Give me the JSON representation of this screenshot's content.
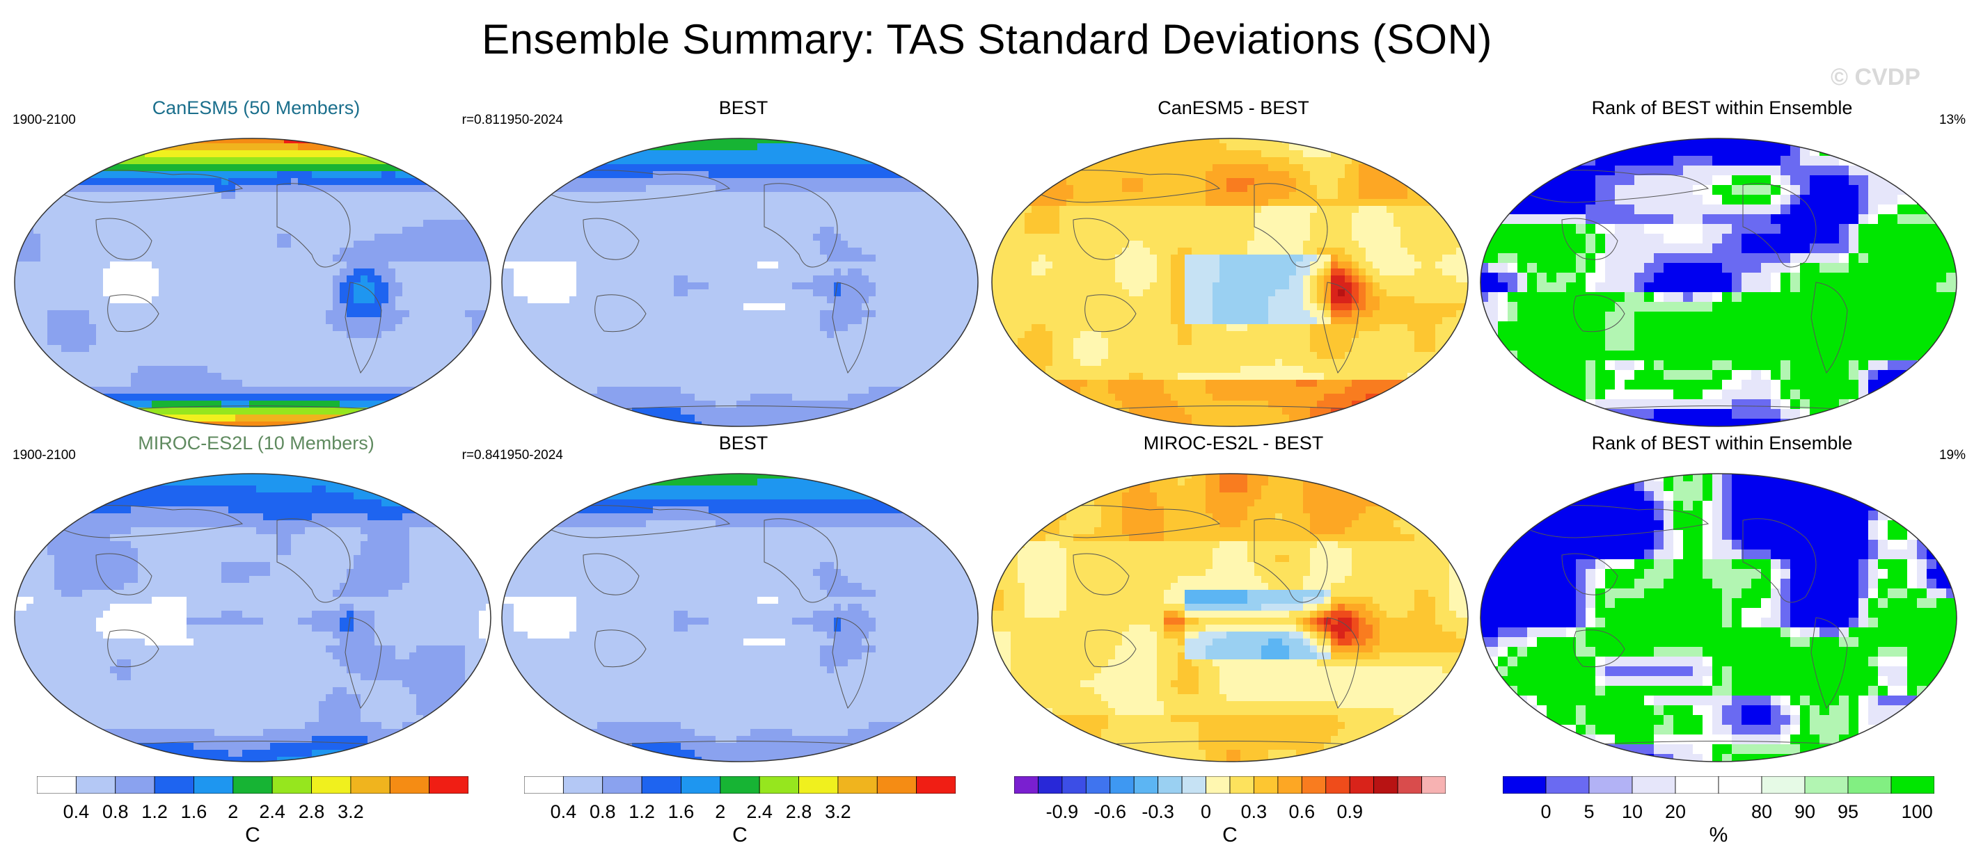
{
  "title": "Ensemble Summary: TAS Standard Deviations (SON)",
  "watermark": "© CVDP",
  "panels": [
    {
      "title": "CanESM5 (50 Members)",
      "title_color": "#1b6f8c",
      "left": "1900-2100",
      "right": "r=0.81",
      "kind": "std_model_a"
    },
    {
      "title": "BEST",
      "title_color": "#000000",
      "left": "1950-2024",
      "right": "",
      "kind": "std_obs"
    },
    {
      "title": "CanESM5 - BEST",
      "title_color": "#000000",
      "left": "",
      "right": "",
      "kind": "diff_a"
    },
    {
      "title": "Rank of BEST within Ensemble",
      "title_color": "#000000",
      "left": "",
      "right": "13%",
      "kind": "rank_a"
    },
    {
      "title": "MIROC-ES2L (10 Members)",
      "title_color": "#5f8a5f",
      "left": "1900-2100",
      "right": "r=0.84",
      "kind": "std_model_b"
    },
    {
      "title": "BEST",
      "title_color": "#000000",
      "left": "1950-2024",
      "right": "",
      "kind": "std_obs"
    },
    {
      "title": "MIROC-ES2L - BEST",
      "title_color": "#000000",
      "left": "",
      "right": "",
      "kind": "diff_b"
    },
    {
      "title": "Rank of BEST within Ensemble",
      "title_color": "#000000",
      "left": "",
      "right": "19%",
      "kind": "rank_b"
    }
  ],
  "colorbars": [
    {
      "name": "std",
      "unit": "C",
      "colors": [
        "#ffffff",
        "#b4c8f5",
        "#8aa2ef",
        "#1e64f0",
        "#1e96f0",
        "#17b434",
        "#96e61e",
        "#f0f01e",
        "#f0b41e",
        "#f58c14",
        "#f01e14"
      ],
      "labels": [
        "0.4",
        "0.8",
        "1.2",
        "1.6",
        "2",
        "2.4",
        "2.8",
        "3.2"
      ]
    },
    {
      "name": "std",
      "unit": "C",
      "colors": [
        "#ffffff",
        "#b4c8f5",
        "#8aa2ef",
        "#1e64f0",
        "#1e96f0",
        "#17b434",
        "#96e61e",
        "#f0f01e",
        "#f0b41e",
        "#f58c14",
        "#f01e14"
      ],
      "labels": [
        "0.4",
        "0.8",
        "1.2",
        "1.6",
        "2",
        "2.4",
        "2.8",
        "3.2"
      ]
    },
    {
      "name": "diff",
      "unit": "C",
      "colors": [
        "#7a1fd0",
        "#2828d8",
        "#3c4ee6",
        "#3f74ef",
        "#3e98f2",
        "#5cb5f3",
        "#9ad0f2",
        "#c6e2f4",
        "#fff7b0",
        "#fde25d",
        "#fdc631",
        "#fda724",
        "#f97c1f",
        "#ef4c1b",
        "#d9231a",
        "#b81313",
        "#d94c4c",
        "#f7b2b2"
      ],
      "labels": [
        "-0.9",
        "-0.6",
        "-0.3",
        "0",
        "0.3",
        "0.6",
        "0.9"
      ]
    },
    {
      "name": "rank",
      "unit": "%",
      "colors": [
        "#0000f0",
        "#6a6af2",
        "#b2b2f5",
        "#e6e6fa",
        "#ffffff",
        "#ffffff",
        "#e6fae6",
        "#b2f5b2",
        "#82ef82",
        "#00e600"
      ],
      "labels": [
        "0",
        "5",
        "10",
        "20",
        "80",
        "90",
        "95",
        "100"
      ]
    }
  ]
}
